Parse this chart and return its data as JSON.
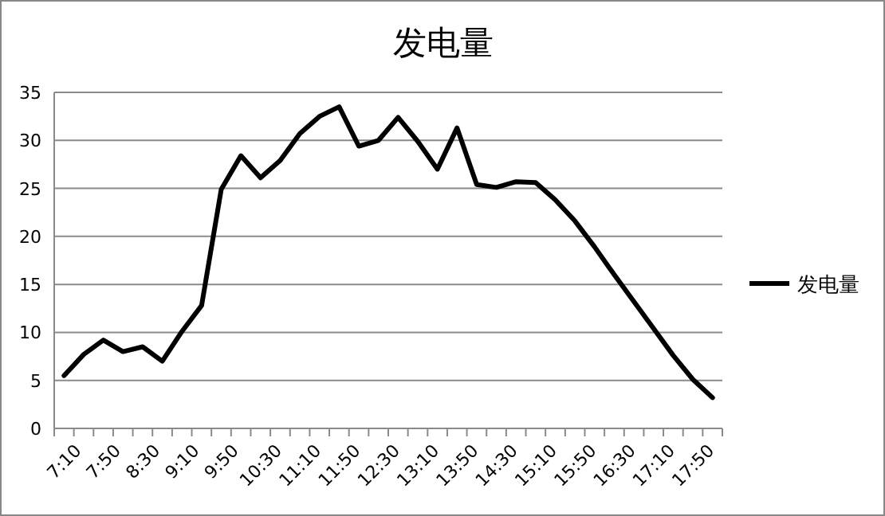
{
  "chart_data": {
    "type": "line",
    "title": "发电量",
    "categories": [
      "7:10",
      null,
      "7:50",
      null,
      "8:30",
      null,
      "9:10",
      null,
      "9:50",
      null,
      "10:30",
      null,
      "11:10",
      null,
      "11:50",
      null,
      "12:30",
      null,
      "13:10",
      null,
      "13:50",
      null,
      "14:30",
      null,
      "15:10",
      null,
      "15:50",
      null,
      "16:30",
      null,
      "17:10",
      null,
      "17:50",
      null
    ],
    "series": [
      {
        "name": "发电量",
        "color": "#000000",
        "values": [
          5.5,
          7.7,
          9.2,
          8.0,
          8.5,
          7.0,
          10.1,
          12.8,
          24.9,
          28.4,
          26.1,
          27.9,
          30.7,
          32.5,
          33.5,
          29.4,
          30.0,
          32.4,
          29.9,
          27.0,
          31.3,
          25.4,
          25.1,
          25.7,
          25.6,
          23.8,
          21.6,
          18.9,
          16.0,
          13.2,
          10.4,
          7.6,
          5.1,
          3.2
        ]
      }
    ],
    "ylim": [
      0,
      35
    ],
    "yticks": [
      0,
      5,
      10,
      15,
      20,
      25,
      30,
      35
    ],
    "grid": "y",
    "legend": "right"
  }
}
